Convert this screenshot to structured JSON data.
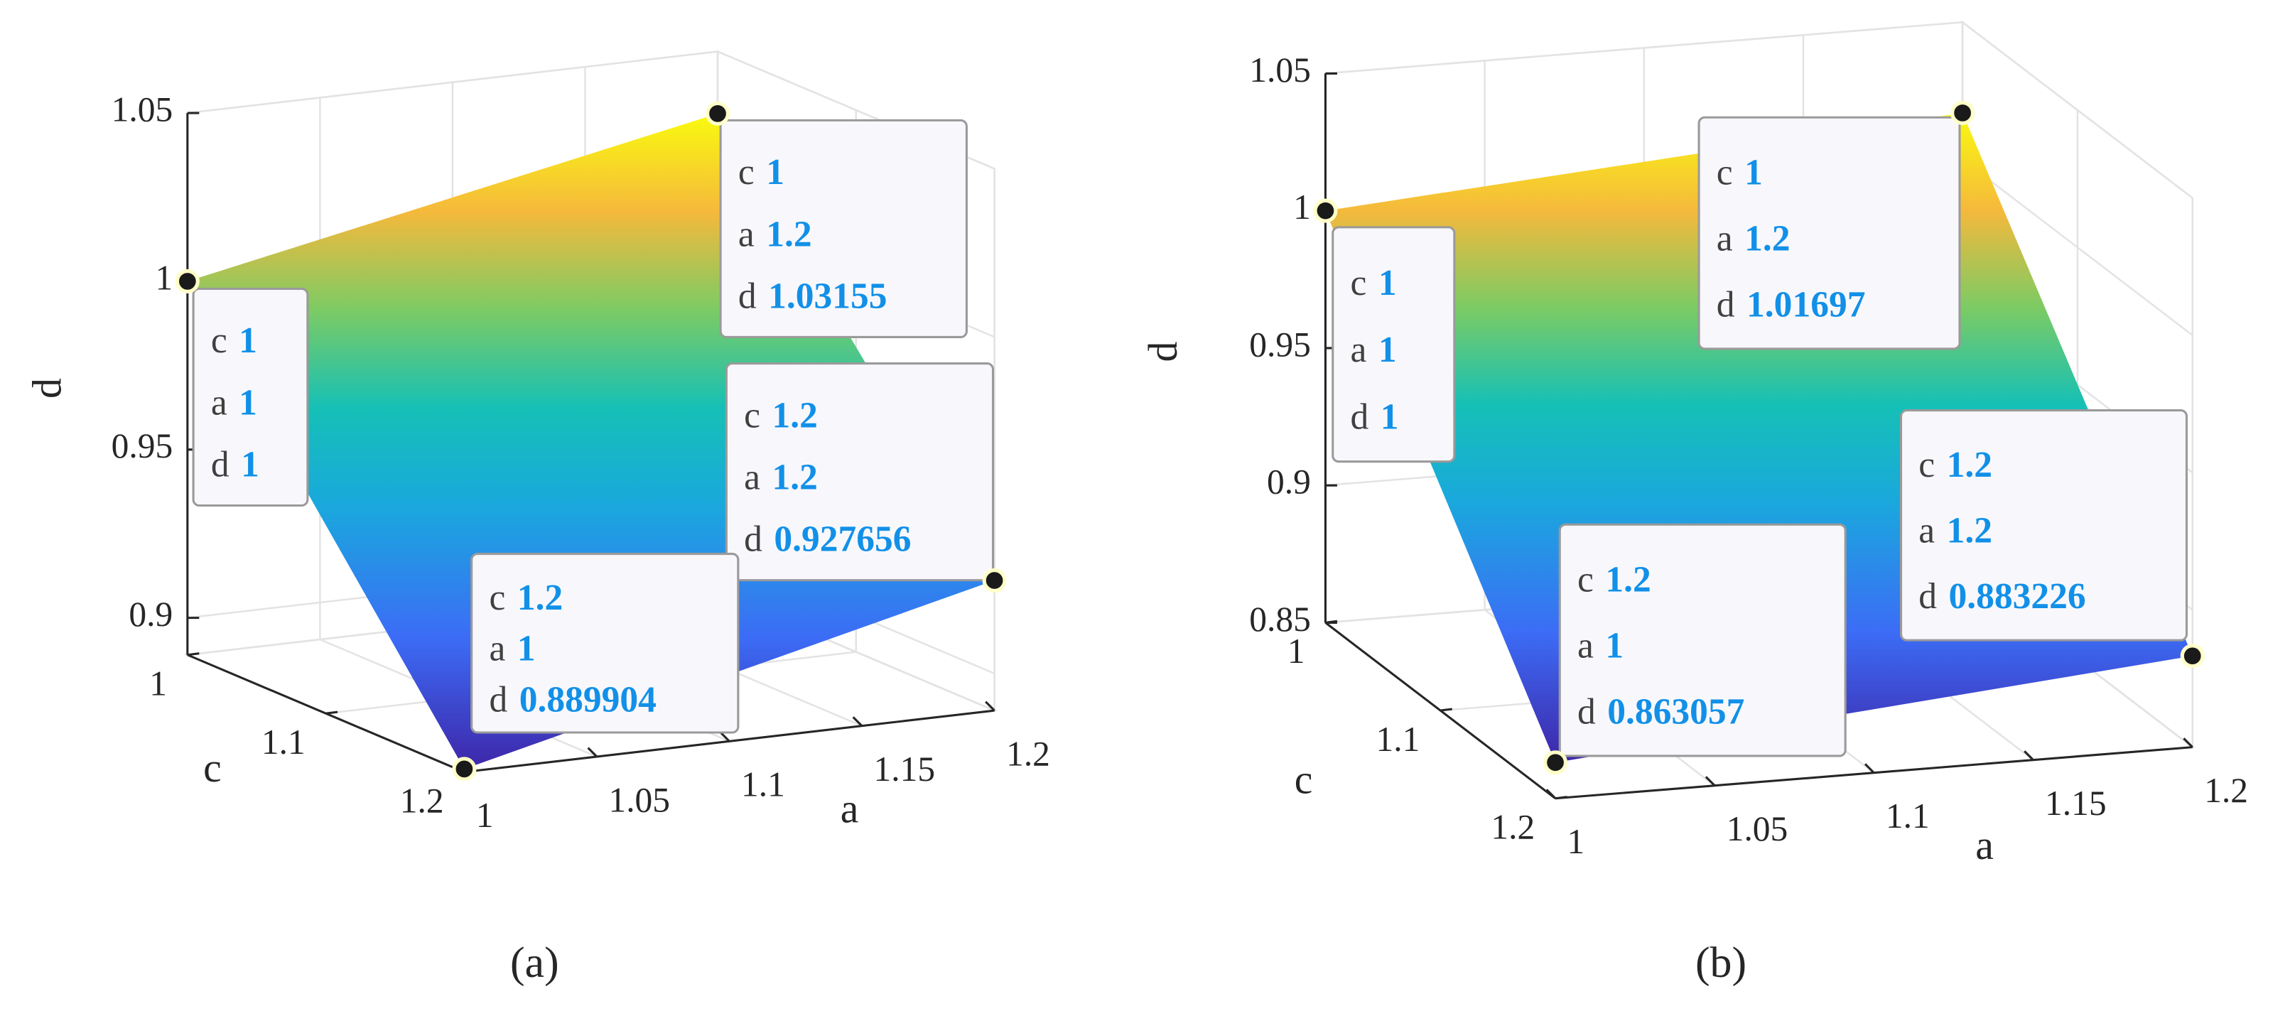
{
  "chart_data": [
    {
      "type": "surface",
      "label": "(a)",
      "xlabel": "a",
      "ylabel": "c",
      "zlabel": "d",
      "x": [
        1,
        1.2,
        1.2,
        1
      ],
      "y": [
        1,
        1,
        1.2,
        1.2
      ],
      "z": [
        1,
        1.03155,
        0.927656,
        0.889904
      ],
      "xlim": [
        1,
        1.2
      ],
      "ylim": [
        1,
        1.2
      ],
      "zlim": [
        0.889,
        1.05
      ],
      "xticks": [
        1,
        1.05,
        1.1,
        1.15,
        1.2
      ],
      "yticks": [
        1,
        1.1,
        1.2
      ],
      "zticks": [
        0.9,
        0.95,
        1,
        1.05
      ],
      "grid": true,
      "colormap": "parula"
    },
    {
      "type": "surface",
      "label": "(b)",
      "xlabel": "a",
      "ylabel": "c",
      "zlabel": "d",
      "x": [
        1,
        1.2,
        1.2,
        1
      ],
      "y": [
        1,
        1,
        1.2,
        1.2
      ],
      "z": [
        1,
        1.01697,
        0.883226,
        0.863057
      ],
      "xlim": [
        1,
        1.2
      ],
      "ylim": [
        1,
        1.2
      ],
      "zlim": [
        0.85,
        1.05
      ],
      "xticks": [
        1,
        1.05,
        1.1,
        1.15,
        1.2
      ],
      "yticks": [
        1,
        1.1,
        1.2
      ],
      "zticks": [
        0.85,
        0.9,
        0.95,
        1,
        1.05
      ],
      "grid": true,
      "colormap": "parula"
    }
  ]
}
